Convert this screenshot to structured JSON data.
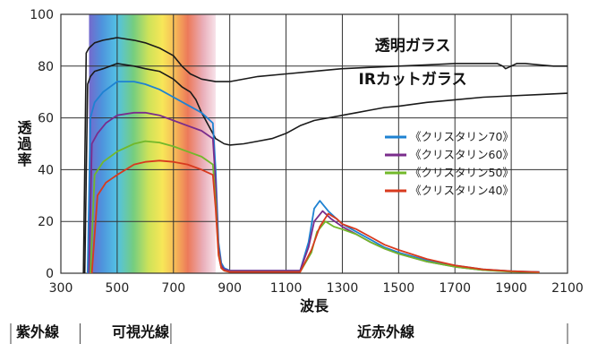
{
  "chart_data": {
    "type": "line",
    "xlabel": "波長",
    "ylabel": "透過率",
    "xlim": [
      300,
      2100
    ],
    "ylim": [
      0,
      100
    ],
    "x_ticks": [
      300,
      500,
      700,
      900,
      1100,
      1300,
      1500,
      1700,
      1900,
      2100
    ],
    "y_ticks": [
      0,
      20,
      40,
      60,
      80,
      100
    ],
    "spectrum_band": [
      400,
      850
    ],
    "annotations": [
      {
        "text": "透明ガラス",
        "x": 1550,
        "y": 86
      },
      {
        "text": "IRカットガラス",
        "x": 1550,
        "y": 73
      }
    ],
    "legend_position": "right-center",
    "legend_order": [
      2,
      3,
      4,
      5
    ],
    "regions": [
      {
        "label": "紫外線",
        "from": 300,
        "to": 400
      },
      {
        "label": "可視光線",
        "from": 400,
        "to": 780
      },
      {
        "label": "近赤外線",
        "from": 780,
        "to": 2100
      }
    ],
    "series": [
      {
        "name": "",
        "color": "#1a1a1a",
        "x": [
          380,
          390,
          400,
          420,
          450,
          500,
          560,
          600,
          650,
          700,
          730,
          760,
          800,
          850,
          900,
          1000,
          1100,
          1200,
          1300,
          1400,
          1500,
          1600,
          1700,
          1800,
          1850,
          1870,
          1880,
          1900,
          1920,
          1950,
          2000,
          2050,
          2100
        ],
        "y": [
          0,
          85,
          87,
          89,
          90,
          91,
          90,
          89,
          87,
          84,
          80,
          77,
          75,
          74,
          74,
          76,
          77,
          78,
          79,
          79.5,
          80,
          80.5,
          81,
          81,
          81,
          80,
          79,
          80,
          81,
          81,
          80.5,
          80,
          80
        ]
      },
      {
        "name": "",
        "color": "#1a1a1a",
        "x": [
          385,
          395,
          405,
          420,
          450,
          500,
          560,
          600,
          650,
          700,
          730,
          760,
          780,
          800,
          830,
          850,
          880,
          900,
          950,
          1000,
          1050,
          1100,
          1150,
          1200,
          1250,
          1300,
          1350,
          1400,
          1450,
          1500,
          1600,
          1700,
          1800,
          1900,
          2000,
          2100
        ],
        "y": [
          0,
          73,
          76,
          78,
          79,
          81,
          80,
          79,
          78,
          75,
          72,
          70,
          67,
          62,
          56,
          52,
          50,
          49.5,
          50,
          51,
          52,
          54,
          57,
          59,
          60,
          61,
          62,
          63,
          64,
          64.5,
          66,
          67,
          68,
          68.5,
          69,
          69.5
        ]
      },
      {
        "name": "《クリスタリン70》",
        "color": "#1e82d2",
        "x": [
          395,
          405,
          420,
          450,
          500,
          560,
          600,
          650,
          700,
          750,
          800,
          840,
          850,
          860,
          870,
          880,
          900,
          950,
          1000,
          1050,
          1100,
          1150,
          1180,
          1200,
          1220,
          1250,
          1300,
          1350,
          1400,
          1450,
          1500,
          1600,
          1700,
          1800,
          1900,
          2000
        ],
        "y": [
          0,
          60,
          66,
          70,
          74,
          74,
          73,
          71,
          68,
          65,
          62,
          58,
          40,
          12,
          4,
          2,
          1,
          1,
          1,
          1,
          1,
          1,
          12,
          25,
          28,
          24,
          19,
          16,
          13,
          10,
          8,
          5,
          3,
          1.5,
          0.8,
          0.5
        ]
      },
      {
        "name": "《クリスタリン60》",
        "color": "#7a2d8c",
        "x": [
          400,
          410,
          430,
          460,
          500,
          560,
          600,
          650,
          700,
          750,
          800,
          840,
          850,
          860,
          870,
          880,
          900,
          1000,
          1100,
          1150,
          1180,
          1200,
          1230,
          1260,
          1300,
          1350,
          1400,
          1450,
          1500,
          1600,
          1700,
          1800,
          1900,
          2000
        ],
        "y": [
          0,
          50,
          54,
          58,
          61,
          62,
          62,
          61,
          59,
          57,
          55,
          52,
          35,
          10,
          3,
          1.5,
          1,
          1,
          1,
          1,
          10,
          20,
          24,
          21,
          18,
          15,
          12,
          9.5,
          7.5,
          4.5,
          2.5,
          1.2,
          0.7,
          0.4
        ]
      },
      {
        "name": "《クリスタリン50》",
        "color": "#72b82a",
        "x": [
          405,
          420,
          450,
          500,
          560,
          600,
          650,
          700,
          750,
          800,
          840,
          850,
          860,
          870,
          880,
          900,
          1000,
          1100,
          1150,
          1190,
          1210,
          1240,
          1270,
          1300,
          1350,
          1400,
          1450,
          1500,
          1600,
          1700,
          1800,
          1900,
          2000
        ],
        "y": [
          0,
          38,
          43,
          47,
          50,
          51,
          50.5,
          49,
          47,
          45,
          42,
          28,
          8,
          2,
          1,
          0.5,
          0.5,
          0.5,
          0.5,
          8,
          16,
          20,
          18,
          17,
          15,
          12,
          9.5,
          7.5,
          4.5,
          2.5,
          1.2,
          0.6,
          0.3
        ]
      },
      {
        "name": "《クリスタリン40》",
        "color": "#d83a1e",
        "x": [
          410,
          430,
          460,
          500,
          560,
          600,
          650,
          700,
          750,
          800,
          840,
          850,
          860,
          870,
          880,
          900,
          1000,
          1100,
          1150,
          1190,
          1220,
          1250,
          1280,
          1300,
          1350,
          1400,
          1450,
          1500,
          1600,
          1700,
          1800,
          1900,
          2000
        ],
        "y": [
          0,
          30,
          35,
          38,
          42,
          43,
          43.5,
          43,
          42,
          40,
          38,
          25,
          7,
          2,
          1,
          0.5,
          0.5,
          0.5,
          0.5,
          9,
          18,
          23,
          21,
          19,
          17,
          14,
          11,
          9,
          5.5,
          3,
          1.5,
          0.8,
          0.4
        ]
      }
    ]
  }
}
